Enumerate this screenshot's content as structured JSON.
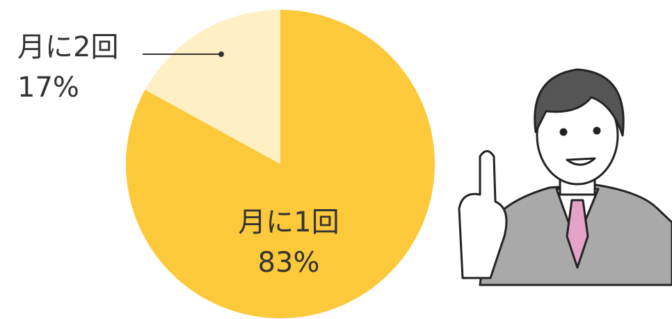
{
  "chart_data": {
    "type": "pie",
    "categories": [
      "月に1回",
      "月に2回"
    ],
    "values": [
      83,
      17
    ],
    "value_labels": [
      "83%",
      "17%"
    ],
    "colors": [
      "#fcc93a",
      "#fef0c4"
    ]
  }
}
